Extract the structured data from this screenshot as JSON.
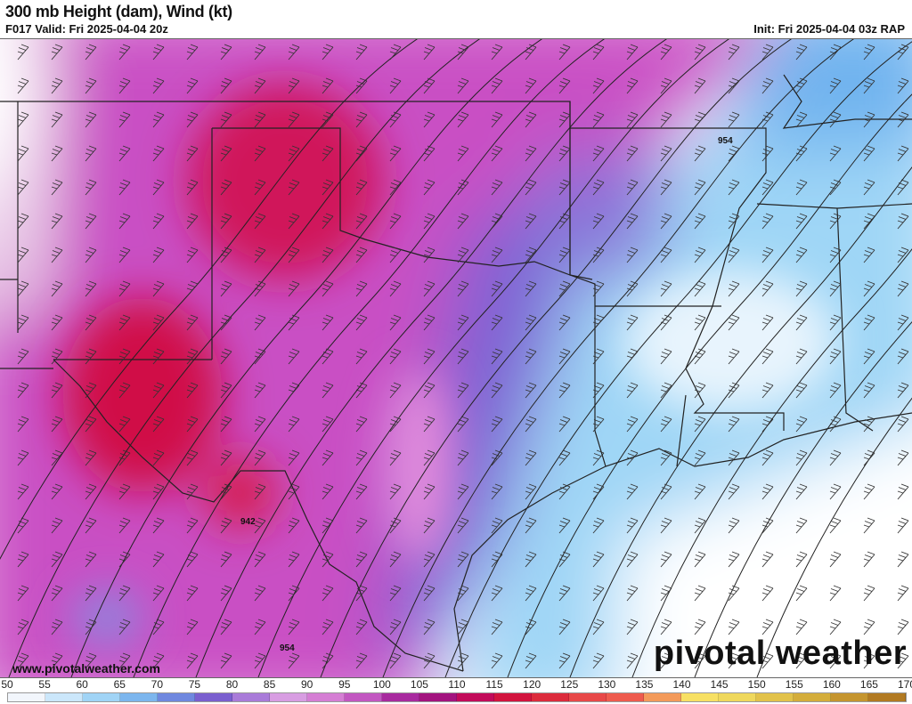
{
  "header": {
    "title": "300 mb Height (dam), Wind (kt)",
    "valid": "F017 Valid: Fri 2025-04-04 20z",
    "init": "Init: Fri 2025-04-04 03z RAP"
  },
  "map": {
    "contour_labels": [
      "942",
      "954",
      "954"
    ]
  },
  "footer": {
    "url": "www.pivotalweather.com",
    "logo": "pivotal weather"
  },
  "colorbar": {
    "labels": [
      "50",
      "55",
      "60",
      "65",
      "70",
      "75",
      "80",
      "85",
      "90",
      "95",
      "100",
      "105",
      "110",
      "115",
      "120",
      "125",
      "130",
      "135",
      "140",
      "145",
      "150",
      "155",
      "160",
      "165",
      "170"
    ],
    "colors": [
      "#f2f6fc",
      "#cbe7fb",
      "#a0d4f6",
      "#7cb6ee",
      "#6f88df",
      "#7a5fcf",
      "#a97bd9",
      "#d89de2",
      "#d57ed4",
      "#c257c1",
      "#a82a9f",
      "#a3147f",
      "#c20b5a",
      "#d2143e",
      "#dc2b3c",
      "#e84848",
      "#ee5b4e",
      "#f39a5a",
      "#f7e063",
      "#efd85c",
      "#e2c24a",
      "#d4ad3b",
      "#c5952f",
      "#b27a22"
    ]
  }
}
